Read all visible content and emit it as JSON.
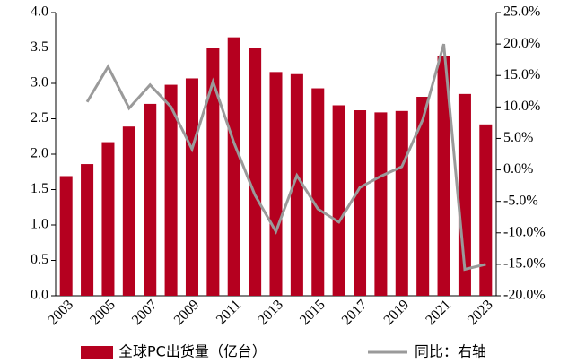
{
  "chart_data": {
    "type": "bar",
    "categories": [
      "2003",
      null,
      "2005",
      null,
      "2007",
      null,
      "2009",
      null,
      "2011",
      null,
      "2013",
      null,
      "2015",
      null,
      "2017",
      null,
      "2019",
      null,
      "2021",
      null,
      "2023"
    ],
    "series": [
      {
        "name": "全球PC出货量（亿台）",
        "color": "#b5001f",
        "type": "bar",
        "values": [
          1.69,
          1.86,
          2.17,
          2.39,
          2.71,
          2.98,
          3.07,
          3.5,
          3.65,
          3.5,
          3.16,
          3.13,
          2.93,
          2.69,
          2.62,
          2.59,
          2.61,
          2.81,
          3.39,
          2.85,
          2.42
        ]
      },
      {
        "name": "同比：右轴",
        "color": "#9a9a9a",
        "type": "line",
        "axis": "y2",
        "values": [
          null,
          10.8,
          16.4,
          9.8,
          13.5,
          10.0,
          3.3,
          14.0,
          4.3,
          -4.0,
          -9.8,
          -0.9,
          -6.2,
          -8.3,
          -2.8,
          -1.0,
          0.5,
          8.0,
          20.0,
          -15.8,
          -15.0
        ]
      }
    ],
    "ylim": [
      0,
      4
    ],
    "yticks": [
      {
        "value": 0,
        "label": "0.0"
      },
      {
        "value": 0.5,
        "label": "0.5"
      },
      {
        "value": 1,
        "label": "1.0"
      },
      {
        "value": 1.5,
        "label": "1.5"
      },
      {
        "value": 2,
        "label": "2.0"
      },
      {
        "value": 2.5,
        "label": "2.5"
      },
      {
        "value": 3,
        "label": "3.0"
      },
      {
        "value": 3.5,
        "label": "3.5"
      },
      {
        "value": 4,
        "label": "4.0"
      }
    ],
    "y2lim": [
      -20,
      25
    ],
    "y2ticks": [
      {
        "value": -20,
        "label": "-20.0%"
      },
      {
        "value": -15,
        "label": "-15.0%"
      },
      {
        "value": -10,
        "label": "-10.0%"
      },
      {
        "value": -5,
        "label": "-5.0%"
      },
      {
        "value": 0,
        "label": "0.0%"
      },
      {
        "value": 5,
        "label": "5.0%"
      },
      {
        "value": 10,
        "label": "10.0%"
      },
      {
        "value": 15,
        "label": "15.0%"
      },
      {
        "value": 20,
        "label": "20.0%"
      },
      {
        "value": 25,
        "label": "25.0%"
      }
    ],
    "grid": false,
    "legend": "bottom"
  }
}
